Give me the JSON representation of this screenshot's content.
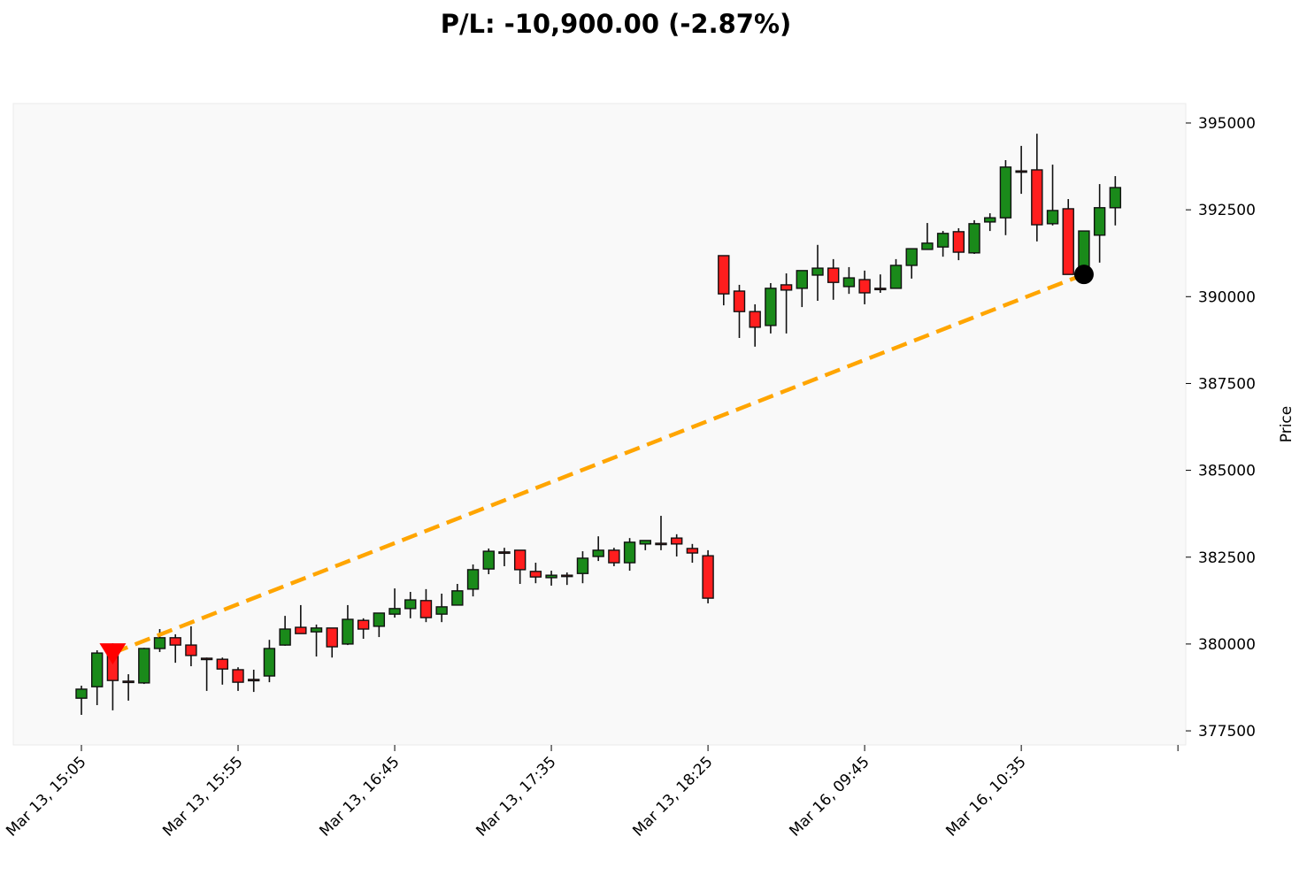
{
  "chart_data": {
    "type": "candlestick",
    "title": "P/L: -10,900.00 (-2.87%)",
    "xlabel": "",
    "ylabel": "Price",
    "ylim": [
      377094,
      395560
    ],
    "xlim": [
      -4.35,
      70.5
    ],
    "yticks": [
      377500,
      380000,
      382500,
      385000,
      387500,
      390000,
      392500,
      395000
    ],
    "ytick_labels": [
      "377500",
      "380000",
      "382500",
      "385000",
      "387500",
      "390000",
      "392500",
      "395000"
    ],
    "xticks": [
      0,
      10,
      20,
      30,
      40,
      50,
      60,
      70
    ],
    "xtick_labels": [
      "Mar 13, 15:05",
      "Mar 13, 15:55",
      "Mar 13, 16:45",
      "Mar 13, 17:35",
      "Mar 13, 18:25",
      "Mar 16, 09:45",
      "Mar 16, 10:35",
      ""
    ],
    "grid": false,
    "colors": {
      "up": "#1a8a1a",
      "down": "#ff1e1e",
      "trade_line": "#ffa500",
      "entry": "#ff0000",
      "exit": "#000000",
      "background": "#f9f9f9"
    },
    "ohlc": [
      [
        378440,
        378700,
        378800,
        377960
      ],
      [
        378770,
        379740,
        379820,
        378240
      ],
      [
        379740,
        378950,
        380020,
        378090
      ],
      [
        378930,
        378900,
        379130,
        378370
      ],
      [
        378880,
        379870,
        379890,
        378850
      ],
      [
        379870,
        380180,
        380430,
        379770
      ],
      [
        380180,
        379970,
        380280,
        379460
      ],
      [
        379970,
        379670,
        380510,
        379360
      ],
      [
        379590,
        379560,
        379610,
        378650
      ],
      [
        379560,
        379280,
        379610,
        378830
      ],
      [
        379260,
        378900,
        379330,
        378650
      ],
      [
        378980,
        378950,
        379260,
        378620
      ],
      [
        379080,
        379870,
        380120,
        378900
      ],
      [
        379970,
        380430,
        380810,
        379950
      ],
      [
        380480,
        380300,
        381120,
        380300
      ],
      [
        380350,
        380460,
        380560,
        379640
      ],
      [
        380460,
        379920,
        380460,
        379610
      ],
      [
        380000,
        380710,
        381120,
        379970
      ],
      [
        380680,
        380430,
        380740,
        380150
      ],
      [
        380510,
        380890,
        380890,
        380200
      ],
      [
        380860,
        381020,
        381600,
        380760
      ],
      [
        381020,
        381270,
        381500,
        380740
      ],
      [
        381250,
        380760,
        381580,
        380630
      ],
      [
        380860,
        381070,
        381450,
        380630
      ],
      [
        381120,
        381530,
        381730,
        381120
      ],
      [
        381580,
        382140,
        382290,
        381370
      ],
      [
        382160,
        382670,
        382750,
        382010
      ],
      [
        382650,
        382630,
        382770,
        382240
      ],
      [
        382700,
        382140,
        382700,
        381730
      ],
      [
        382090,
        381930,
        382340,
        381750
      ],
      [
        381910,
        381980,
        382110,
        381680
      ],
      [
        381980,
        381970,
        382060,
        381700
      ],
      [
        382030,
        382470,
        382670,
        381750
      ],
      [
        382520,
        382700,
        383100,
        382390
      ],
      [
        382700,
        382340,
        382770,
        382240
      ],
      [
        382340,
        382930,
        383050,
        382110
      ],
      [
        382880,
        382980,
        382980,
        382700
      ],
      [
        382900,
        382890,
        383690,
        382700
      ],
      [
        383050,
        382880,
        383160,
        382520
      ],
      [
        382750,
        382620,
        382880,
        382340
      ],
      [
        382540,
        381320,
        382700,
        381170
      ],
      [
        391180,
        390080,
        391180,
        389750
      ],
      [
        390160,
        389570,
        390340,
        388810
      ],
      [
        389570,
        389120,
        389780,
        388560
      ],
      [
        389170,
        390240,
        390390,
        388940
      ],
      [
        390340,
        390190,
        390670,
        388940
      ],
      [
        390240,
        390750,
        390750,
        389700
      ],
      [
        390620,
        390820,
        391490,
        389880
      ],
      [
        390820,
        390410,
        391080,
        389910
      ],
      [
        390290,
        390540,
        390850,
        390080
      ],
      [
        390490,
        390110,
        390750,
        389780
      ],
      [
        390240,
        390230,
        390640,
        390110
      ],
      [
        390240,
        390900,
        391080,
        390240
      ],
      [
        390900,
        391380,
        391380,
        390520
      ],
      [
        391360,
        391540,
        392120,
        391360
      ],
      [
        391430,
        391820,
        391890,
        391150
      ],
      [
        391870,
        391280,
        391970,
        391050
      ],
      [
        391260,
        392100,
        392200,
        391230
      ],
      [
        392150,
        392270,
        392400,
        391890
      ],
      [
        392270,
        393730,
        393930,
        391770
      ],
      [
        393620,
        393610,
        394340,
        392960
      ],
      [
        393650,
        392070,
        394690,
        391590
      ],
      [
        392100,
        392480,
        393800,
        392050
      ],
      [
        392530,
        390640,
        392810,
        390640
      ],
      [
        390850,
        391890,
        391890,
        390770
      ],
      [
        391770,
        392560,
        393240,
        390980
      ],
      [
        392560,
        393140,
        393470,
        392050
      ]
    ],
    "trade": {
      "side": "short",
      "entry_index": 2,
      "entry_price": 379740,
      "exit_index": 64,
      "exit_price": 390640
    }
  }
}
